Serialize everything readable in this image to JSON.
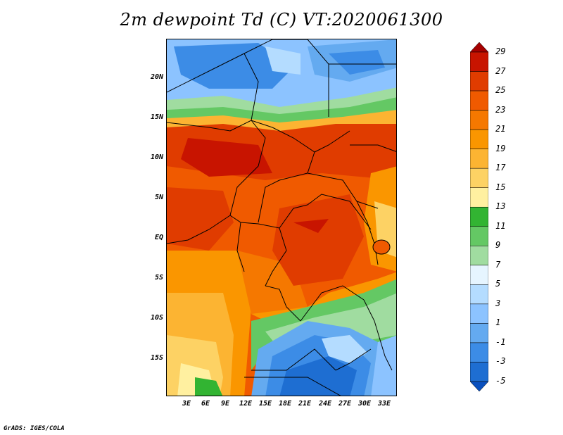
{
  "title": "2m dewpoint Td (C) VT:2020061300",
  "footer": "GrADS: IGES/COLA",
  "y_axis_labels": [
    "20N",
    "15N",
    "10N",
    "5N",
    "EQ",
    "5S",
    "10S",
    "15S"
  ],
  "x_axis_labels": [
    "3E",
    "6E",
    "9E",
    "12E",
    "15E",
    "18E",
    "21E",
    "24E",
    "27E",
    "30E",
    "33E"
  ],
  "colorbar": {
    "labels": [
      "29",
      "27",
      "25",
      "23",
      "21",
      "19",
      "17",
      "15",
      "13",
      "11",
      "9",
      "7",
      "5",
      "3",
      "1",
      "-1",
      "-3",
      "-5"
    ],
    "colors": [
      "#a50000",
      "#c81400",
      "#e03c00",
      "#f05a00",
      "#f57800",
      "#fa9600",
      "#fcb432",
      "#fdd264",
      "#fff0a0",
      "#32b432",
      "#64c864",
      "#a0dca0",
      "#e6f5ff",
      "#b4dcff",
      "#8cc3ff",
      "#64aaf0",
      "#3c8ce6",
      "#1e6ed2",
      "#0a50be"
    ]
  }
}
